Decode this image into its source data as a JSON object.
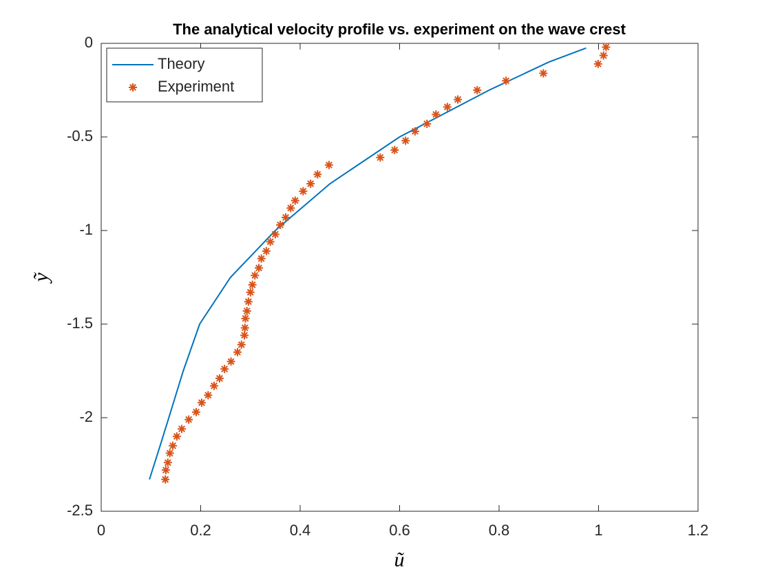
{
  "chart_data": {
    "type": "line",
    "title": "The analytical velocity profile vs. experiment on the wave crest",
    "xlabel": "ũ",
    "ylabel": "ỹ",
    "xlim": [
      0,
      1.2
    ],
    "ylim": [
      -2.5,
      0
    ],
    "xticks": [
      0,
      0.2,
      0.4,
      0.6,
      0.8,
      1,
      1.2
    ],
    "yticks": [
      -2.5,
      -2,
      -1.5,
      -1,
      -0.5,
      0
    ],
    "grid": false,
    "legend": "upper left",
    "series": [
      {
        "name": "Theory",
        "color": "#0072BD",
        "style": "line",
        "x": [
          0.097,
          0.122,
          0.136,
          0.165,
          0.198,
          0.26,
          0.35,
          0.46,
          0.6,
          0.78,
          0.9,
          0.975
        ],
        "values": [
          -2.33,
          -2.12,
          -2.0,
          -1.75,
          -1.5,
          -1.25,
          -1.0,
          -0.75,
          -0.5,
          -0.25,
          -0.1,
          -0.025
        ]
      },
      {
        "name": "Experiment",
        "color": "#D95319",
        "style": "marker",
        "x": [
          1.015,
          1.01,
          0.999,
          0.889,
          0.814,
          0.756,
          0.717,
          0.696,
          0.673,
          0.655,
          0.631,
          0.612,
          0.59,
          0.561,
          0.458,
          0.435,
          0.421,
          0.406,
          0.39,
          0.381,
          0.371,
          0.36,
          0.35,
          0.34,
          0.332,
          0.322,
          0.317,
          0.309,
          0.304,
          0.3,
          0.296,
          0.293,
          0.29,
          0.289,
          0.288,
          0.282,
          0.274,
          0.261,
          0.248,
          0.238,
          0.227,
          0.215,
          0.202,
          0.191,
          0.176,
          0.162,
          0.152,
          0.144,
          0.138,
          0.134,
          0.13,
          0.129
        ],
        "values": [
          -0.02,
          -0.065,
          -0.11,
          -0.16,
          -0.2,
          -0.25,
          -0.3,
          -0.34,
          -0.38,
          -0.43,
          -0.47,
          -0.52,
          -0.57,
          -0.61,
          -0.65,
          -0.7,
          -0.75,
          -0.79,
          -0.84,
          -0.88,
          -0.93,
          -0.97,
          -1.02,
          -1.06,
          -1.11,
          -1.15,
          -1.2,
          -1.24,
          -1.29,
          -1.33,
          -1.38,
          -1.43,
          -1.47,
          -1.52,
          -1.56,
          -1.61,
          -1.65,
          -1.7,
          -1.74,
          -1.79,
          -1.83,
          -1.88,
          -1.92,
          -1.97,
          -2.01,
          -2.06,
          -2.1,
          -2.15,
          -2.19,
          -2.24,
          -2.28,
          -2.33
        ]
      }
    ]
  }
}
